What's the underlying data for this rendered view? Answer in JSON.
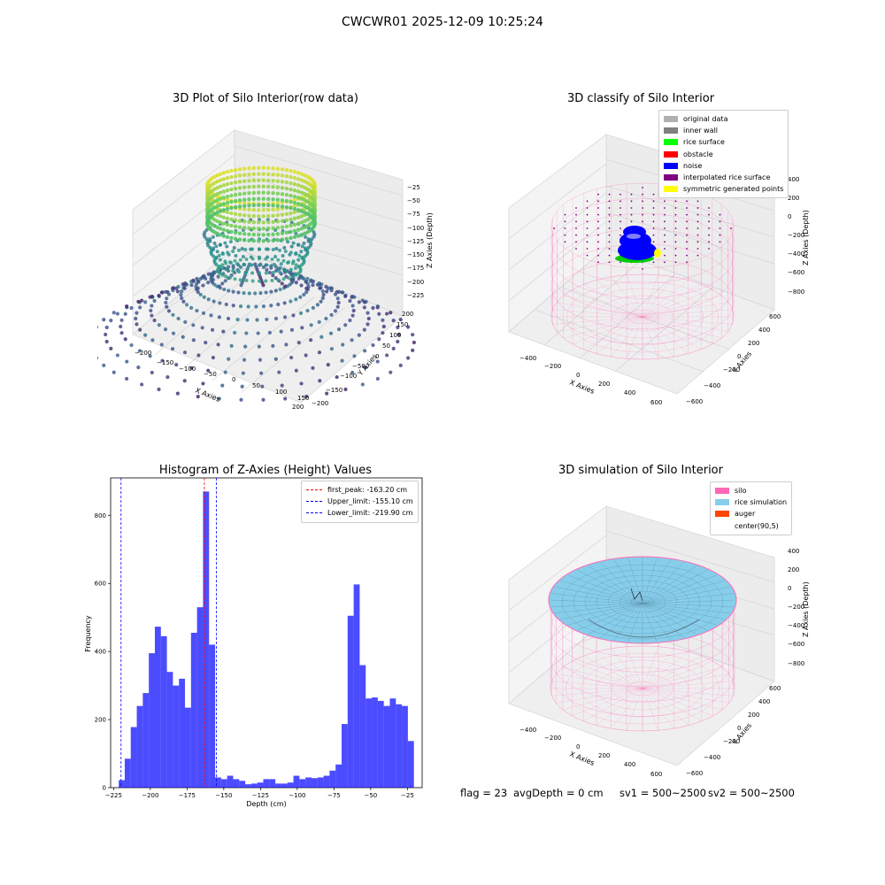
{
  "suptitle": "CWCWR01 2025-12-09 10:25:24",
  "panels": {
    "raw": {
      "title": "3D Plot of Silo Interior(row data)",
      "xlabel": "X Axies",
      "ylabel": "Y Axies",
      "zlabel": "Z Axies (Depth)",
      "xticks": [
        "−200",
        "−150",
        "−100",
        "−50",
        "0",
        "50",
        "100",
        "150",
        "200"
      ],
      "yticks": [
        "−200",
        "−150",
        "−100",
        "−50",
        "0",
        "50",
        "100",
        "150",
        "200"
      ],
      "zticks": [
        "−25",
        "−50",
        "−75",
        "−100",
        "−125",
        "−150",
        "−175",
        "−200",
        "−225"
      ]
    },
    "classify": {
      "title": "3D classify of Silo Interior",
      "xlabel": "X Axies",
      "ylabel": "Y Axies",
      "zlabel": "Z Axies (Depth)",
      "xticks": [
        "−400",
        "−200",
        "0",
        "200",
        "400",
        "600"
      ],
      "yticks": [
        "−600",
        "−400",
        "−200",
        "0",
        "200",
        "400",
        "600"
      ],
      "zticks": [
        "400",
        "200",
        "0",
        "−200",
        "−400",
        "−600",
        "−800"
      ],
      "legend": [
        {
          "label": "original data",
          "color": "#b0b0b0"
        },
        {
          "label": "inner wall",
          "color": "#808080"
        },
        {
          "label": "rice surface",
          "color": "#00ff00"
        },
        {
          "label": "obstacle",
          "color": "#ff0000"
        },
        {
          "label": "noise",
          "color": "#0000ff"
        },
        {
          "label": "interpolated rice surface",
          "color": "#800080"
        },
        {
          "label": "symmetric generated points",
          "color": "#ffff00"
        }
      ]
    },
    "simulation": {
      "title": "3D simulation of Silo Interior",
      "xlabel": "X Axies",
      "ylabel": "Y Axies",
      "zlabel": "Z Axies (Depth)",
      "xticks": [
        "−400",
        "−200",
        "0",
        "200",
        "400",
        "600"
      ],
      "yticks": [
        "−600",
        "−400",
        "−200",
        "0",
        "200",
        "400",
        "600"
      ],
      "zticks": [
        "400",
        "200",
        "0",
        "−200",
        "−400",
        "−600",
        "−800"
      ],
      "legend": [
        {
          "label": "silo",
          "color": "#ff69b4"
        },
        {
          "label": "rice simulation",
          "color": "#87ceeb"
        },
        {
          "label": "auger",
          "color": "#ff4500"
        },
        {
          "label": "center(90,5)",
          "color": "#ffffff"
        }
      ]
    }
  },
  "footer": {
    "flag": "flag = 23",
    "avg": "avgDepth = 0 cm",
    "sv1": "sv1 = 500~2500",
    "sv2": "sv2 = 500~2500"
  },
  "chart_data": {
    "type": "bar",
    "title": "Histogram of Z-Axies (Height) Values",
    "xlabel": "Depth (cm)",
    "ylabel": "Frequency",
    "xlim": [
      -227,
      -15
    ],
    "ylim": [
      0,
      910
    ],
    "xticks": [
      -225,
      -200,
      -175,
      -150,
      -125,
      -100,
      -75,
      -50,
      -25
    ],
    "yticks": [
      0,
      200,
      400,
      600,
      800
    ],
    "bin_start": -221.5,
    "bin_width": 4.1,
    "bar_color": "#0000ff",
    "values": [
      22,
      85,
      178,
      240,
      278,
      395,
      473,
      445,
      340,
      300,
      320,
      235,
      455,
      530,
      870,
      420,
      30,
      25,
      35,
      25,
      20,
      10,
      12,
      15,
      25,
      25,
      12,
      12,
      15,
      35,
      25,
      30,
      28,
      30,
      35,
      50,
      68,
      187,
      505,
      597,
      360,
      262,
      265,
      255,
      240,
      262,
      245,
      240,
      137
    ],
    "vlines": [
      {
        "label": "first_peak: -163.20 cm",
        "x": -163.2,
        "color": "#ff0000"
      },
      {
        "label": "Upper_limit: -155.10 cm",
        "x": -155.1,
        "color": "#0000ff"
      },
      {
        "label": "Lower_limit: -219.90 cm",
        "x": -219.9,
        "color": "#0000ff"
      }
    ]
  }
}
